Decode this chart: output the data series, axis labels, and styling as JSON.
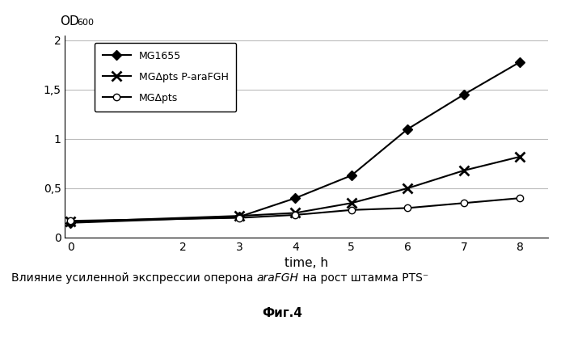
{
  "xlabel": "time, h",
  "xlim": [
    -0.1,
    8.5
  ],
  "ylim": [
    0,
    2.05
  ],
  "yticks": [
    0,
    0.5,
    1.0,
    1.5,
    2.0
  ],
  "ytick_labels": [
    "0",
    "0,5",
    "1",
    "1,5",
    "2"
  ],
  "xticks": [
    0,
    2,
    3,
    4,
    5,
    6,
    7,
    8
  ],
  "xtick_labels": [
    "0",
    "2",
    "3",
    "4",
    "5",
    "6",
    "7",
    "8"
  ],
  "series": [
    {
      "label": "MG1655",
      "x": [
        0,
        3,
        4,
        5,
        6,
        7,
        8
      ],
      "y": [
        0.15,
        0.21,
        0.4,
        0.63,
        1.1,
        1.45,
        1.78
      ],
      "marker": "D",
      "color": "#000000",
      "markersize": 6,
      "linewidth": 1.5,
      "markerfacecolor": "#000000"
    },
    {
      "label": "MGΔpts P-araFGH",
      "x": [
        0,
        3,
        4,
        5,
        6,
        7,
        8
      ],
      "y": [
        0.16,
        0.22,
        0.25,
        0.35,
        0.5,
        0.68,
        0.82
      ],
      "marker": "x",
      "color": "#000000",
      "markersize": 8,
      "linewidth": 1.5,
      "markerfacecolor": "#000000",
      "markeredgewidth": 2.0
    },
    {
      "label": "MGΔpts",
      "x": [
        0,
        3,
        4,
        5,
        6,
        7,
        8
      ],
      "y": [
        0.17,
        0.2,
        0.23,
        0.28,
        0.3,
        0.35,
        0.4
      ],
      "marker": "o",
      "color": "#000000",
      "markersize": 6,
      "linewidth": 1.5,
      "markerfacecolor": "#ffffff"
    }
  ],
  "od_label": "OD",
  "od_subscript": "600",
  "caption_normal1": "Влияние усиленной экспрессии оперона ",
  "caption_italic": "araFGH",
  "caption_normal2": " на рост штамма PTS⁻",
  "caption_line2": "Фиг.4",
  "background_color": "#ffffff",
  "grid_color": "#bbbbbb",
  "legend_fontsize": 9,
  "tick_fontsize": 10,
  "xlabel_fontsize": 11,
  "caption_fontsize": 10,
  "caption2_fontsize": 11
}
